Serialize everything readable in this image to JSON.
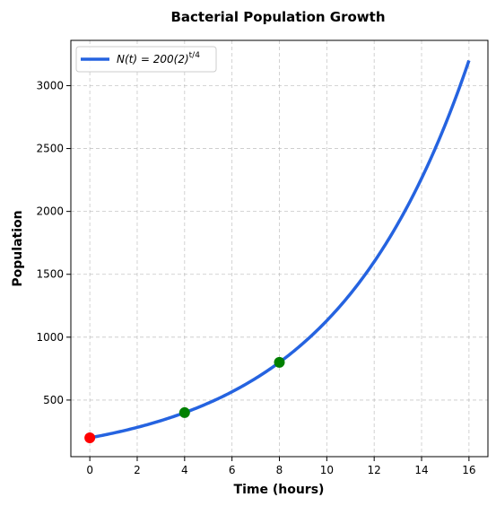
{
  "chart_data": {
    "type": "line",
    "title": "Bacterial Population Growth",
    "xlabel": "Time (hours)",
    "ylabel": "Population",
    "xlim": [
      -0.8,
      16.8
    ],
    "ylim": [
      50,
      3360
    ],
    "x_ticks": [
      0,
      2,
      4,
      6,
      8,
      10,
      12,
      14,
      16
    ],
    "y_ticks": [
      500,
      1000,
      1500,
      2000,
      2500,
      3000
    ],
    "grid": true,
    "legend_position": "top-left",
    "series": [
      {
        "name": "N(t) = 200(2)^(t/4)",
        "legend_label": {
          "prefix": "N(t) = 200(2)",
          "exponent": "t/4"
        },
        "color": "#2563e0",
        "function": {
          "a": 200,
          "base": 2,
          "divisor": 4
        },
        "x_range": [
          0,
          16
        ]
      }
    ],
    "highlighted_points": [
      {
        "x": 0,
        "y": 200,
        "color": "#ff0000"
      },
      {
        "x": 4,
        "y": 400,
        "color": "#008000"
      },
      {
        "x": 8,
        "y": 800,
        "color": "#008000"
      }
    ]
  }
}
